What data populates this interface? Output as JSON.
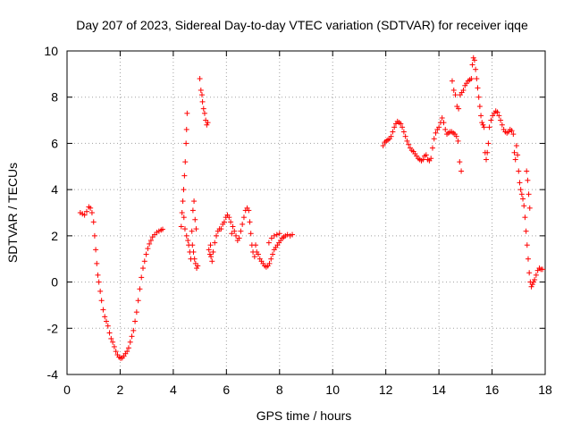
{
  "chart_data": {
    "type": "scatter",
    "title": "Day 207 of 2023, Sidereal Day-to-day VTEC variation (SDTVAR) for receiver iqqe",
    "xlabel": "GPS time / hours",
    "ylabel": "SDTVAR / TECUs",
    "xlim": [
      0,
      18
    ],
    "ylim": [
      -4,
      10
    ],
    "xticks": [
      "0",
      "2",
      "4",
      "6",
      "8",
      "10",
      "12",
      "14",
      "16",
      "18"
    ],
    "yticks": [
      "-4",
      "-2",
      "0",
      "2",
      "4",
      "6",
      "8",
      "10"
    ],
    "grid": true,
    "legend": "none",
    "marker": "+",
    "color": "#ff0000",
    "series": [
      {
        "name": "sdtvar",
        "points": [
          [
            0.5,
            3.0
          ],
          [
            0.58,
            2.95
          ],
          [
            0.66,
            2.9
          ],
          [
            0.74,
            3.05
          ],
          [
            0.82,
            3.25
          ],
          [
            0.88,
            3.2
          ],
          [
            0.94,
            3.0
          ],
          [
            1.0,
            2.6
          ],
          [
            1.04,
            2.0
          ],
          [
            1.08,
            1.4
          ],
          [
            1.12,
            0.8
          ],
          [
            1.16,
            0.3
          ],
          [
            1.2,
            0.0
          ],
          [
            1.25,
            -0.4
          ],
          [
            1.3,
            -0.8
          ],
          [
            1.36,
            -1.2
          ],
          [
            1.42,
            -1.5
          ],
          [
            1.48,
            -1.7
          ],
          [
            1.54,
            -1.9
          ],
          [
            1.6,
            -2.2
          ],
          [
            1.66,
            -2.45
          ],
          [
            1.72,
            -2.6
          ],
          [
            1.78,
            -2.8
          ],
          [
            1.84,
            -3.0
          ],
          [
            1.9,
            -3.15
          ],
          [
            1.96,
            -3.25
          ],
          [
            2.02,
            -3.3
          ],
          [
            2.08,
            -3.28
          ],
          [
            2.14,
            -3.2
          ],
          [
            2.2,
            -3.1
          ],
          [
            2.26,
            -3.0
          ],
          [
            2.32,
            -2.85
          ],
          [
            2.38,
            -2.6
          ],
          [
            2.44,
            -2.35
          ],
          [
            2.5,
            -2.1
          ],
          [
            2.56,
            -1.7
          ],
          [
            2.62,
            -1.3
          ],
          [
            2.68,
            -0.8
          ],
          [
            2.74,
            -0.3
          ],
          [
            2.8,
            0.2
          ],
          [
            2.86,
            0.6
          ],
          [
            2.92,
            0.9
          ],
          [
            2.98,
            1.2
          ],
          [
            3.04,
            1.45
          ],
          [
            3.1,
            1.65
          ],
          [
            3.16,
            1.8
          ],
          [
            3.22,
            1.95
          ],
          [
            3.3,
            2.05
          ],
          [
            3.38,
            2.15
          ],
          [
            3.46,
            2.2
          ],
          [
            3.54,
            2.25
          ],
          [
            3.6,
            2.28
          ],
          [
            4.3,
            2.4
          ],
          [
            4.33,
            3.0
          ],
          [
            4.36,
            3.5
          ],
          [
            4.39,
            4.0
          ],
          [
            4.42,
            4.6
          ],
          [
            4.45,
            5.2
          ],
          [
            4.48,
            6.0
          ],
          [
            4.5,
            6.6
          ],
          [
            4.52,
            7.3
          ],
          [
            4.4,
            2.8
          ],
          [
            4.44,
            2.3
          ],
          [
            4.5,
            2.0
          ],
          [
            4.55,
            1.8
          ],
          [
            4.58,
            1.6
          ],
          [
            4.62,
            1.3
          ],
          [
            4.66,
            1.0
          ],
          [
            4.7,
            2.2
          ],
          [
            4.72,
            1.6
          ],
          [
            4.76,
            1.3
          ],
          [
            4.8,
            1.0
          ],
          [
            4.84,
            0.8
          ],
          [
            4.88,
            0.6
          ],
          [
            4.92,
            0.7
          ],
          [
            4.74,
            3.1
          ],
          [
            4.78,
            3.5
          ],
          [
            4.82,
            2.7
          ],
          [
            4.86,
            2.3
          ],
          [
            5.0,
            8.8
          ],
          [
            5.04,
            8.3
          ],
          [
            5.08,
            8.1
          ],
          [
            5.1,
            7.8
          ],
          [
            5.14,
            7.5
          ],
          [
            5.18,
            7.3
          ],
          [
            5.22,
            7.0
          ],
          [
            5.26,
            6.8
          ],
          [
            5.3,
            6.9
          ],
          [
            5.34,
            1.4
          ],
          [
            5.38,
            1.2
          ],
          [
            5.42,
            1.1
          ],
          [
            5.46,
            0.9
          ],
          [
            5.4,
            1.6
          ],
          [
            5.5,
            1.3
          ],
          [
            5.56,
            1.7
          ],
          [
            5.62,
            2.0
          ],
          [
            5.68,
            2.2
          ],
          [
            5.74,
            2.3
          ],
          [
            5.8,
            2.3
          ],
          [
            5.86,
            2.5
          ],
          [
            5.92,
            2.6
          ],
          [
            5.98,
            2.8
          ],
          [
            6.04,
            2.9
          ],
          [
            6.1,
            2.8
          ],
          [
            6.16,
            2.6
          ],
          [
            6.2,
            2.1
          ],
          [
            6.24,
            2.4
          ],
          [
            6.3,
            2.2
          ],
          [
            6.36,
            2.0
          ],
          [
            6.42,
            1.8
          ],
          [
            6.48,
            1.9
          ],
          [
            6.54,
            2.2
          ],
          [
            6.6,
            2.5
          ],
          [
            6.66,
            2.8
          ],
          [
            6.72,
            3.1
          ],
          [
            6.78,
            3.2
          ],
          [
            6.84,
            3.1
          ],
          [
            6.88,
            2.6
          ],
          [
            6.92,
            2.1
          ],
          [
            6.96,
            1.6
          ],
          [
            7.0,
            1.3
          ],
          [
            7.06,
            1.1
          ],
          [
            7.1,
            1.6
          ],
          [
            7.14,
            1.3
          ],
          [
            7.2,
            1.2
          ],
          [
            7.26,
            1.0
          ],
          [
            7.32,
            0.9
          ],
          [
            7.38,
            0.8
          ],
          [
            7.44,
            0.7
          ],
          [
            7.5,
            0.65
          ],
          [
            7.56,
            0.7
          ],
          [
            7.62,
            0.8
          ],
          [
            7.68,
            1.0
          ],
          [
            7.74,
            1.2
          ],
          [
            7.8,
            1.4
          ],
          [
            7.86,
            1.5
          ],
          [
            7.92,
            1.6
          ],
          [
            7.98,
            1.7
          ],
          [
            8.04,
            1.8
          ],
          [
            8.1,
            1.9
          ],
          [
            8.16,
            1.95
          ],
          [
            8.22,
            2.0
          ],
          [
            8.3,
            2.05
          ],
          [
            8.4,
            2.0
          ],
          [
            8.48,
            2.05
          ],
          [
            7.6,
            1.7
          ],
          [
            7.7,
            1.9
          ],
          [
            7.8,
            2.0
          ],
          [
            7.9,
            2.05
          ],
          [
            8.0,
            2.1
          ],
          [
            11.9,
            5.9
          ],
          [
            11.96,
            6.05
          ],
          [
            12.02,
            6.1
          ],
          [
            12.08,
            6.15
          ],
          [
            12.14,
            6.2
          ],
          [
            12.2,
            6.3
          ],
          [
            12.26,
            6.5
          ],
          [
            12.32,
            6.7
          ],
          [
            12.38,
            6.85
          ],
          [
            12.44,
            6.95
          ],
          [
            12.5,
            6.9
          ],
          [
            12.56,
            6.85
          ],
          [
            12.62,
            6.7
          ],
          [
            12.68,
            6.5
          ],
          [
            12.74,
            6.3
          ],
          [
            12.8,
            6.1
          ],
          [
            12.86,
            5.95
          ],
          [
            12.92,
            5.8
          ],
          [
            12.98,
            5.7
          ],
          [
            13.04,
            5.65
          ],
          [
            13.1,
            5.55
          ],
          [
            13.16,
            5.45
          ],
          [
            13.22,
            5.35
          ],
          [
            13.28,
            5.3
          ],
          [
            13.34,
            5.25
          ],
          [
            13.4,
            5.3
          ],
          [
            13.46,
            5.45
          ],
          [
            13.52,
            5.5
          ],
          [
            13.58,
            5.3
          ],
          [
            13.64,
            5.25
          ],
          [
            13.7,
            5.35
          ],
          [
            13.76,
            5.8
          ],
          [
            13.82,
            6.2
          ],
          [
            13.88,
            6.45
          ],
          [
            13.94,
            6.6
          ],
          [
            14.0,
            6.7
          ],
          [
            14.06,
            6.9
          ],
          [
            14.12,
            7.1
          ],
          [
            14.18,
            6.9
          ],
          [
            14.24,
            6.6
          ],
          [
            14.3,
            6.4
          ],
          [
            14.36,
            6.45
          ],
          [
            14.42,
            6.5
          ],
          [
            14.48,
            6.5
          ],
          [
            14.54,
            6.45
          ],
          [
            14.6,
            6.4
          ],
          [
            14.66,
            6.3
          ],
          [
            14.72,
            6.1
          ],
          [
            14.78,
            5.2
          ],
          [
            14.84,
            4.8
          ],
          [
            14.5,
            8.7
          ],
          [
            14.56,
            8.3
          ],
          [
            14.62,
            8.1
          ],
          [
            14.68,
            7.6
          ],
          [
            14.74,
            7.5
          ],
          [
            14.8,
            8.1
          ],
          [
            14.86,
            8.2
          ],
          [
            14.92,
            8.3
          ],
          [
            14.98,
            8.5
          ],
          [
            15.04,
            8.6
          ],
          [
            15.1,
            8.7
          ],
          [
            15.16,
            8.75
          ],
          [
            15.22,
            8.8
          ],
          [
            15.26,
            9.4
          ],
          [
            15.3,
            9.7
          ],
          [
            15.34,
            9.6
          ],
          [
            15.38,
            9.2
          ],
          [
            15.42,
            8.8
          ],
          [
            15.46,
            8.4
          ],
          [
            15.5,
            8.0
          ],
          [
            15.54,
            7.6
          ],
          [
            15.58,
            7.2
          ],
          [
            15.62,
            6.9
          ],
          [
            15.66,
            6.8
          ],
          [
            15.7,
            6.7
          ],
          [
            15.74,
            5.6
          ],
          [
            15.78,
            5.3
          ],
          [
            15.82,
            5.6
          ],
          [
            15.86,
            6.0
          ],
          [
            15.9,
            6.7
          ],
          [
            15.96,
            7.0
          ],
          [
            16.02,
            7.2
          ],
          [
            16.08,
            7.3
          ],
          [
            16.14,
            7.4
          ],
          [
            16.2,
            7.35
          ],
          [
            16.26,
            7.2
          ],
          [
            16.32,
            7.0
          ],
          [
            16.38,
            6.8
          ],
          [
            16.44,
            6.6
          ],
          [
            16.5,
            6.5
          ],
          [
            16.56,
            6.45
          ],
          [
            16.62,
            6.5
          ],
          [
            16.68,
            6.6
          ],
          [
            16.74,
            6.55
          ],
          [
            16.8,
            6.4
          ],
          [
            16.84,
            5.6
          ],
          [
            16.88,
            5.3
          ],
          [
            16.92,
            5.9
          ],
          [
            16.96,
            5.5
          ],
          [
            17.0,
            4.8
          ],
          [
            17.04,
            4.3
          ],
          [
            17.08,
            4.0
          ],
          [
            17.12,
            3.8
          ],
          [
            17.16,
            3.6
          ],
          [
            17.2,
            3.3
          ],
          [
            17.24,
            2.8
          ],
          [
            17.28,
            2.2
          ],
          [
            17.3,
            4.8
          ],
          [
            17.34,
            4.4
          ],
          [
            17.38,
            3.8
          ],
          [
            17.42,
            3.2
          ],
          [
            17.32,
            1.6
          ],
          [
            17.36,
            1.0
          ],
          [
            17.4,
            0.4
          ],
          [
            17.44,
            0.0
          ],
          [
            17.48,
            -0.2
          ],
          [
            17.52,
            -0.1
          ],
          [
            17.56,
            0.0
          ],
          [
            17.6,
            0.1
          ],
          [
            17.66,
            0.3
          ],
          [
            17.72,
            0.5
          ],
          [
            17.78,
            0.6
          ],
          [
            17.84,
            0.55
          ],
          [
            17.9,
            0.55
          ]
        ]
      }
    ]
  }
}
